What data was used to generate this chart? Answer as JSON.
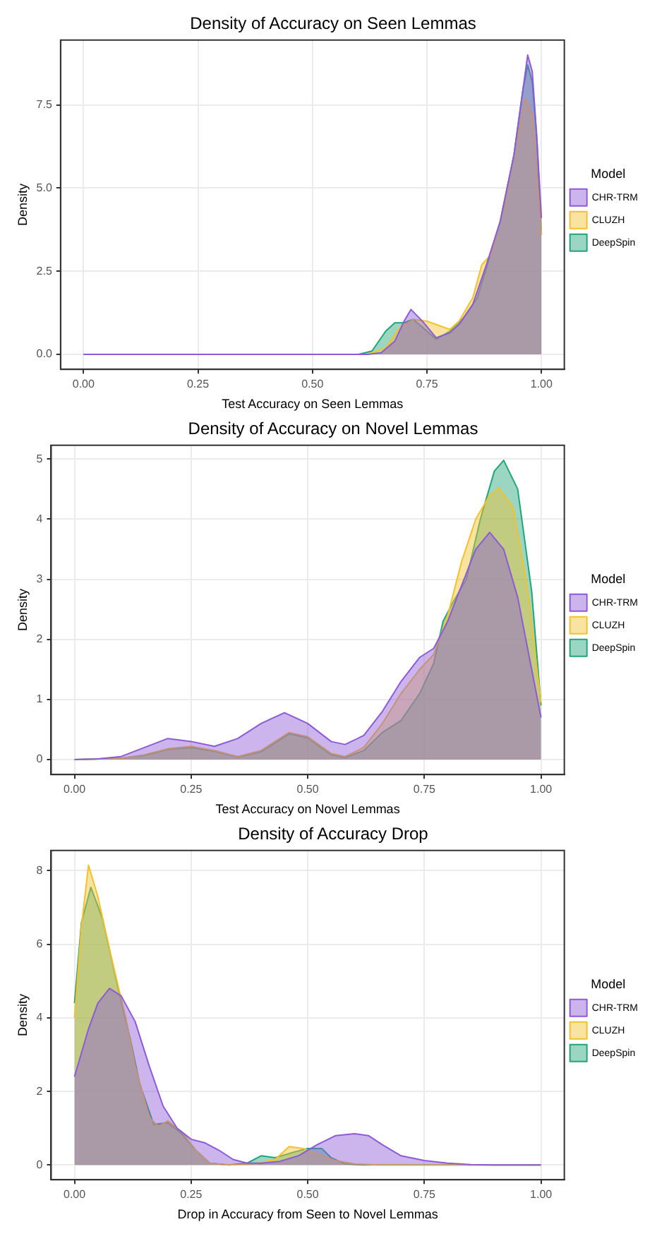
{
  "chart_data": [
    {
      "type": "area",
      "title": "Density of Accuracy on Seen Lemmas",
      "xlabel": "Test Accuracy on Seen Lemmas",
      "ylabel": "Density",
      "legend_title": "Model",
      "legend": "right",
      "grid": true,
      "xlim": [
        -0.05,
        1.05
      ],
      "ylim": [
        -0.45,
        9.45
      ],
      "xticks": [
        {
          "value": 0,
          "label": "0.00"
        },
        {
          "value": 0.25,
          "label": "0.25"
        },
        {
          "value": 0.5,
          "label": "0.50"
        },
        {
          "value": 0.75,
          "label": "0.75"
        },
        {
          "value": 1,
          "label": "1.00"
        }
      ],
      "yticks": [
        {
          "value": 0,
          "label": "0.0"
        },
        {
          "value": 2.5,
          "label": "2.5"
        },
        {
          "value": 5,
          "label": "5.0"
        },
        {
          "value": 7.5,
          "label": "7.5"
        }
      ],
      "series": [
        {
          "name": "CHR-TRM",
          "color": "#8d5bd8",
          "x": [
            0,
            0.62,
            0.65,
            0.68,
            0.7,
            0.715,
            0.74,
            0.77,
            0.8,
            0.82,
            0.85,
            0.88,
            0.91,
            0.94,
            0.96,
            0.97,
            0.98,
            0.99,
            1
          ],
          "values": [
            0,
            0,
            0.05,
            0.4,
            1,
            1.35,
            1,
            0.5,
            0.65,
            0.9,
            1.5,
            2.7,
            4,
            6,
            8,
            9,
            8.5,
            6.5,
            4.1
          ]
        },
        {
          "name": "CLUZH",
          "color": "#f2c12e",
          "x": [
            0,
            0.62,
            0.66,
            0.69,
            0.72,
            0.75,
            0.78,
            0.8,
            0.82,
            0.85,
            0.87,
            0.89,
            0.92,
            0.94,
            0.965,
            0.98,
            0.99,
            1
          ],
          "values": [
            0,
            0,
            0.2,
            0.8,
            1.05,
            1,
            0.85,
            0.75,
            1,
            1.7,
            2.7,
            3,
            4.5,
            6,
            7.7,
            7.2,
            5.5,
            3.6
          ]
        },
        {
          "name": "DeepSpin",
          "color": "#21a57b",
          "x": [
            0,
            0.6,
            0.63,
            0.66,
            0.68,
            0.7,
            0.72,
            0.75,
            0.77,
            0.8,
            0.83,
            0.86,
            0.88,
            0.91,
            0.94,
            0.96,
            0.97,
            0.98,
            0.99,
            1
          ],
          "values": [
            0,
            0,
            0.1,
            0.7,
            0.95,
            0.95,
            1.05,
            0.7,
            0.45,
            0.7,
            1.1,
            1.7,
            2.6,
            4,
            6,
            8,
            8.7,
            8.2,
            6.5,
            3.6
          ]
        }
      ]
    },
    {
      "type": "area",
      "title": "Density of Accuracy on Novel Lemmas",
      "xlabel": "Test Accuracy on Novel Lemmas",
      "ylabel": "Density",
      "legend_title": "Model",
      "legend": "right",
      "grid": true,
      "xlim": [
        -0.05,
        1.05
      ],
      "ylim": [
        -0.25,
        5.23
      ],
      "xticks": [
        {
          "value": 0,
          "label": "0.00"
        },
        {
          "value": 0.25,
          "label": "0.25"
        },
        {
          "value": 0.5,
          "label": "0.50"
        },
        {
          "value": 0.75,
          "label": "0.75"
        },
        {
          "value": 1,
          "label": "1.00"
        }
      ],
      "yticks": [
        0,
        1,
        2,
        3,
        4,
        5
      ],
      "series": [
        {
          "name": "CHR-TRM",
          "color": "#8d5bd8",
          "x": [
            0,
            0.05,
            0.1,
            0.15,
            0.2,
            0.25,
            0.3,
            0.35,
            0.4,
            0.45,
            0.5,
            0.55,
            0.58,
            0.62,
            0.66,
            0.7,
            0.74,
            0.77,
            0.8,
            0.83,
            0.86,
            0.89,
            0.92,
            0.95,
            0.98,
            1
          ],
          "values": [
            0,
            0.01,
            0.05,
            0.2,
            0.35,
            0.3,
            0.22,
            0.35,
            0.6,
            0.78,
            0.6,
            0.3,
            0.25,
            0.4,
            0.8,
            1.3,
            1.7,
            1.85,
            2.3,
            2.9,
            3.5,
            3.78,
            3.5,
            2.7,
            1.5,
            0.7
          ]
        },
        {
          "name": "CLUZH",
          "color": "#f2c12e",
          "x": [
            0,
            0.1,
            0.15,
            0.2,
            0.25,
            0.3,
            0.35,
            0.4,
            0.46,
            0.5,
            0.55,
            0.58,
            0.62,
            0.66,
            0.7,
            0.74,
            0.77,
            0.8,
            0.83,
            0.86,
            0.89,
            0.91,
            0.94,
            0.97,
            1
          ],
          "values": [
            0,
            0.02,
            0.08,
            0.18,
            0.22,
            0.15,
            0.05,
            0.15,
            0.45,
            0.38,
            0.1,
            0.05,
            0.2,
            0.6,
            1.1,
            1.5,
            1.75,
            2.4,
            3.3,
            4,
            4.4,
            4.52,
            4.2,
            2.9,
            0.95
          ]
        },
        {
          "name": "DeepSpin",
          "color": "#21a57b",
          "x": [
            0,
            0.1,
            0.15,
            0.2,
            0.25,
            0.3,
            0.35,
            0.4,
            0.46,
            0.5,
            0.55,
            0.58,
            0.62,
            0.66,
            0.7,
            0.74,
            0.77,
            0.79,
            0.81,
            0.84,
            0.87,
            0.9,
            0.92,
            0.95,
            0.98,
            1
          ],
          "values": [
            0,
            0.02,
            0.07,
            0.17,
            0.2,
            0.14,
            0.04,
            0.13,
            0.43,
            0.36,
            0.08,
            0.03,
            0.15,
            0.45,
            0.65,
            1.1,
            1.6,
            2.3,
            2.6,
            3,
            4,
            4.8,
            4.98,
            4.5,
            2.8,
            0.9
          ]
        }
      ]
    },
    {
      "type": "area",
      "title": "Density of Accuracy Drop",
      "xlabel": "Drop in Accuracy from Seen to Novel Lemmas",
      "ylabel": "Density",
      "legend_title": "Model",
      "legend": "right",
      "grid": true,
      "xlim": [
        -0.05,
        1.05
      ],
      "ylim": [
        -0.4,
        8.55
      ],
      "xticks": [
        {
          "value": 0,
          "label": "0.00"
        },
        {
          "value": 0.25,
          "label": "0.25"
        },
        {
          "value": 0.5,
          "label": "0.50"
        },
        {
          "value": 0.75,
          "label": "0.75"
        },
        {
          "value": 1,
          "label": "1.00"
        }
      ],
      "yticks": [
        0,
        2,
        4,
        6,
        8
      ],
      "series": [
        {
          "name": "CHR-TRM",
          "color": "#8d5bd8",
          "x": [
            0,
            0.03,
            0.05,
            0.075,
            0.1,
            0.13,
            0.16,
            0.19,
            0.22,
            0.25,
            0.28,
            0.31,
            0.34,
            0.37,
            0.4,
            0.44,
            0.48,
            0.52,
            0.56,
            0.6,
            0.63,
            0.66,
            0.7,
            0.75,
            0.8,
            0.85,
            0.9,
            1
          ],
          "values": [
            2.4,
            3.7,
            4.4,
            4.8,
            4.6,
            3.9,
            2.7,
            1.6,
            1,
            0.7,
            0.6,
            0.4,
            0.15,
            0.05,
            0.05,
            0.1,
            0.25,
            0.55,
            0.8,
            0.85,
            0.8,
            0.55,
            0.25,
            0.12,
            0.05,
            0.01,
            0,
            0
          ]
        },
        {
          "name": "CLUZH",
          "color": "#f2c12e",
          "x": [
            0,
            0.015,
            0.03,
            0.05,
            0.08,
            0.11,
            0.13,
            0.16,
            0.18,
            0.2,
            0.23,
            0.26,
            0.29,
            0.33,
            0.38,
            0.43,
            0.46,
            0.49,
            0.52,
            0.56,
            0.6,
            0.65,
            1
          ],
          "values": [
            4,
            6.5,
            8.15,
            7.3,
            5.6,
            4,
            2.7,
            1.3,
            1.05,
            1.2,
            0.9,
            0.4,
            0.05,
            0,
            0.02,
            0.15,
            0.5,
            0.45,
            0.3,
            0.12,
            0.03,
            0,
            0
          ]
        },
        {
          "name": "DeepSpin",
          "color": "#21a57b",
          "x": [
            0,
            0.015,
            0.035,
            0.06,
            0.09,
            0.12,
            0.14,
            0.17,
            0.2,
            0.23,
            0.26,
            0.29,
            0.33,
            0.37,
            0.4,
            0.43,
            0.47,
            0.5,
            0.53,
            0.55,
            0.58,
            0.62,
            1
          ],
          "values": [
            4.4,
            6.6,
            7.55,
            6.7,
            5,
            3.4,
            2.2,
            1.1,
            1.15,
            0.85,
            0.4,
            0.05,
            0,
            0.05,
            0.25,
            0.2,
            0.35,
            0.45,
            0.45,
            0.2,
            0.03,
            0,
            0
          ]
        }
      ]
    }
  ]
}
